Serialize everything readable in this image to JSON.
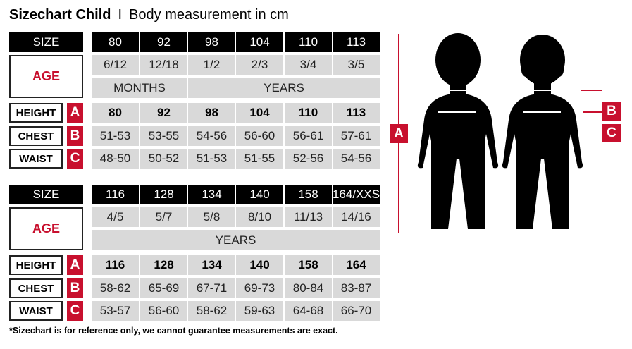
{
  "title": {
    "main": "Sizechart Child",
    "separator": "I",
    "sub": "Body measurement in cm"
  },
  "labels": {
    "size": "SIZE",
    "age": "AGE",
    "height": "HEIGHT",
    "chest": "CHEST",
    "waist": "WAIST",
    "a": "A",
    "b": "B",
    "c": "C"
  },
  "tables": [
    {
      "sizes": [
        "80",
        "92",
        "98",
        "104",
        "110",
        "113"
      ],
      "ages": [
        "6/12",
        "12/18",
        "1/2",
        "2/3",
        "3/4",
        "3/5"
      ],
      "age_units": [
        {
          "label": "MONTHS",
          "span": 2
        },
        {
          "label": "YEARS",
          "span": 4
        }
      ],
      "height": [
        "80",
        "92",
        "98",
        "104",
        "110",
        "113"
      ],
      "chest": [
        "51-53",
        "53-55",
        "54-56",
        "56-60",
        "56-61",
        "57-61"
      ],
      "waist": [
        "48-50",
        "50-52",
        "51-53",
        "51-55",
        "52-56",
        "54-56"
      ]
    },
    {
      "sizes": [
        "116",
        "128",
        "134",
        "140",
        "158",
        "164/XXS"
      ],
      "ages": [
        "4/5",
        "5/7",
        "5/8",
        "8/10",
        "11/13",
        "14/16"
      ],
      "age_units": [
        {
          "label": "YEARS",
          "span": 6
        }
      ],
      "height": [
        "116",
        "128",
        "134",
        "140",
        "158",
        "164"
      ],
      "chest": [
        "58-62",
        "65-69",
        "67-71",
        "69-73",
        "80-84",
        "83-87"
      ],
      "waist": [
        "53-57",
        "56-60",
        "58-62",
        "59-63",
        "64-68",
        "66-70"
      ]
    }
  ],
  "footnote": "*Sizechart is for reference only, we cannot guarantee measurements are exact.",
  "colors": {
    "accent": "#c8102e",
    "header": "#000000",
    "cell": "#d9d9d9"
  }
}
